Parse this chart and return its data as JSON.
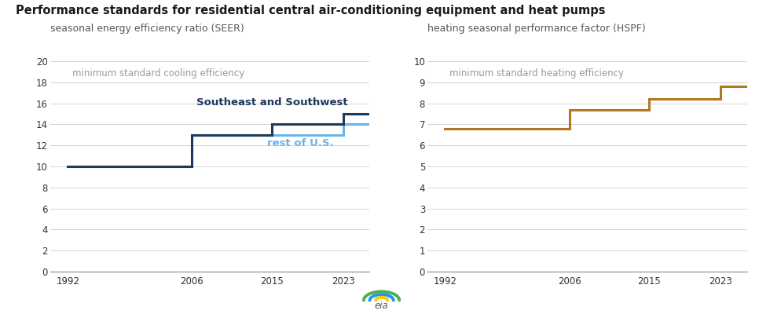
{
  "title": "Performance standards for residential central air-conditioning equipment and heat pumps",
  "left_subtitle": "seasonal energy efficiency ratio (SEER)",
  "right_subtitle": "heating seasonal performance factor (HSPF)",
  "left_annotation": "minimum standard cooling efficiency",
  "right_annotation": "minimum standard heating efficiency",
  "seer_rest_label": "rest of U.S.",
  "seer_se_sw_label": "Southeast and Southwest",
  "seer_rest_x": [
    1992,
    2006,
    2006,
    2023,
    2023,
    2026
  ],
  "seer_rest_y": [
    10,
    10,
    13,
    13,
    14,
    14
  ],
  "seer_sesw_x": [
    1992,
    2006,
    2006,
    2015,
    2015,
    2023,
    2023,
    2026
  ],
  "seer_sesw_y": [
    10,
    10,
    13,
    13,
    14,
    14,
    15,
    15
  ],
  "hspf_x": [
    1992,
    2006,
    2006,
    2015,
    2015,
    2023,
    2023,
    2026
  ],
  "hspf_y": [
    6.8,
    6.8,
    7.7,
    7.7,
    8.2,
    8.2,
    8.8,
    8.8
  ],
  "seer_rest_color": "#6ab4e8",
  "seer_sesw_color": "#1b3a5c",
  "hspf_color": "#b07820",
  "left_ylim": [
    0,
    20
  ],
  "right_ylim": [
    0,
    10
  ],
  "left_yticks": [
    0,
    2,
    4,
    6,
    8,
    10,
    12,
    14,
    16,
    18,
    20
  ],
  "right_yticks": [
    0,
    1,
    2,
    3,
    4,
    5,
    6,
    7,
    8,
    9,
    10
  ],
  "xticks": [
    1992,
    2006,
    2015,
    2023
  ],
  "xlim": [
    1990,
    2026
  ],
  "title_color": "#1a1a1a",
  "subtitle_color": "#555555",
  "annotation_color": "#999999",
  "line_width": 2.2,
  "background_color": "#ffffff",
  "grid_color": "#cccccc"
}
